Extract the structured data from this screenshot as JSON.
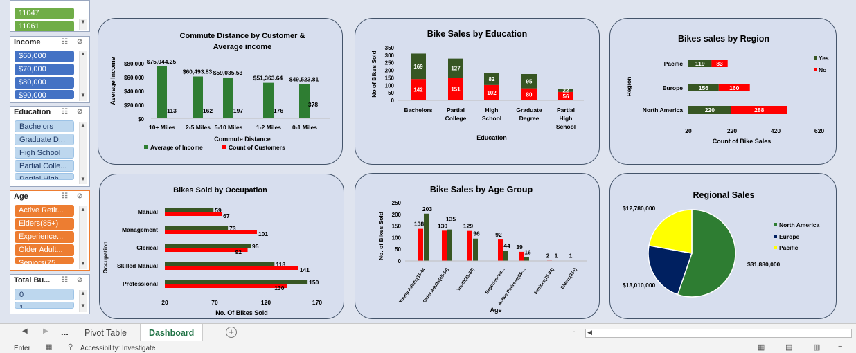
{
  "slicers": {
    "top": {
      "items": [
        "11047",
        "11061"
      ]
    },
    "income": {
      "title": "Income",
      "items": [
        "$60,000",
        "$70,000",
        "$80,000",
        "$90,000"
      ]
    },
    "education": {
      "title": "Education",
      "items": [
        "Bachelors",
        "Graduate D...",
        "High School",
        "Partial Colle...",
        "Partial High..."
      ]
    },
    "age": {
      "title": "Age",
      "items": [
        "Active Retir...",
        "Elders(85+)",
        "Experience...",
        "Older Adult...",
        "Seniors(75..."
      ]
    },
    "total": {
      "title": "Total Bu...",
      "items": [
        "0",
        "1"
      ]
    }
  },
  "charts": {
    "commute": {
      "title1": "Commute Distance by Customer &",
      "title2": "Average income",
      "xlabel": "Commute Distance",
      "ylabel": "Average Income",
      "yticks": [
        "$80,000",
        "$60,000",
        "$40,000",
        "$20,000",
        "$0"
      ],
      "legend": [
        "Average of Income",
        "Count of Customers"
      ]
    },
    "education": {
      "title": "Bike Sales by Education",
      "xlabel": "Education",
      "ylabel": "No of Bikes Sold",
      "yticks": [
        "350",
        "300",
        "250",
        "200",
        "150",
        "100",
        "50",
        "0"
      ]
    },
    "region": {
      "title": "Bikes sales by Region",
      "xlabel": "Count of Bike Sales",
      "ylabel": "Region",
      "xticks": [
        "20",
        "220",
        "420",
        "620"
      ],
      "legend": [
        "Yes",
        "No"
      ]
    },
    "occupation": {
      "title": "Bikes Sold by Occupation",
      "xlabel": "No. Of Bikes Sold",
      "ylabel": "Occupation",
      "xticks": [
        "20",
        "70",
        "120",
        "170"
      ]
    },
    "age": {
      "title": "Bike Sales by Age Group",
      "xlabel": "Age",
      "ylabel": "No. of Bikes Sold",
      "yticks": [
        "250",
        "200",
        "150",
        "100",
        "50",
        "0"
      ]
    },
    "regional": {
      "title": "Regional Sales",
      "legend": [
        "North America",
        "Europe",
        "Pacific"
      ]
    }
  },
  "chart_data": [
    {
      "type": "bar",
      "title": "Commute Distance by Customer & Average income",
      "xlabel": "Commute Distance",
      "ylabel": "Average Income",
      "categories": [
        "10+ Miles",
        "2-5 Miles",
        "5-10 Miles",
        "1-2 Miles",
        "0-1 Miles"
      ],
      "series": [
        {
          "name": "Average of Income",
          "values": [
            75044.25,
            60493.83,
            59035.53,
            51363.64,
            49523.81
          ],
          "labels": [
            "$75,044.25",
            "$60,493.83",
            "$59,035.53",
            "$51,363.64",
            "$49,523.81"
          ],
          "color": "#2e7d32"
        },
        {
          "name": "Count of Customers",
          "values": [
            113,
            162,
            197,
            176,
            378
          ],
          "color": "#ff0000"
        }
      ],
      "ylim": [
        0,
        80000
      ]
    },
    {
      "type": "bar",
      "title": "Bike Sales by Education",
      "xlabel": "Education",
      "ylabel": "No of Bikes Sold",
      "categories": [
        "Bachelors",
        "Partial College",
        "High School",
        "Graduate Degree",
        "Partial High School"
      ],
      "series": [
        {
          "name": "No",
          "values": [
            142,
            151,
            102,
            80,
            56
          ],
          "color": "#ff0000"
        },
        {
          "name": "Yes",
          "values": [
            169,
            127,
            82,
            95,
            22
          ],
          "color": "#375623"
        }
      ],
      "ylim": [
        0,
        350
      ]
    },
    {
      "type": "bar",
      "title": "Bikes sales by Region",
      "xlabel": "Count of Bike Sales",
      "ylabel": "Region",
      "categories": [
        "Pacific",
        "Europe",
        "North America"
      ],
      "series": [
        {
          "name": "Yes",
          "values": [
            119,
            156,
            220
          ],
          "color": "#375623"
        },
        {
          "name": "No",
          "values": [
            83,
            160,
            288
          ],
          "color": "#ff0000"
        }
      ],
      "xlim": [
        20,
        620
      ]
    },
    {
      "type": "bar",
      "title": "Bikes Sold by Occupation",
      "xlabel": "No. Of Bikes Sold",
      "ylabel": "Occupation",
      "categories": [
        "Manual",
        "Management",
        "Clerical",
        "Skilled Manual",
        "Professional"
      ],
      "series": [
        {
          "values": [
            59,
            73,
            95,
            118,
            150
          ],
          "color": "#375623"
        },
        {
          "values": [
            67,
            101,
            92,
            141,
            130
          ],
          "color": "#ff0000"
        }
      ],
      "xlim": [
        20,
        170
      ]
    },
    {
      "type": "bar",
      "title": "Bike Sales by Age Group",
      "xlabel": "Age",
      "ylabel": "No. of Bikes Sold",
      "categories": [
        "Young Adults(35-44",
        "Older Adults(45-54)",
        "Youth(25-34)",
        "Experienced...",
        "Active Retirees(65-...",
        "Seniors(75-84)",
        "Elders(85+)"
      ],
      "series": [
        {
          "values": [
            138,
            130,
            129,
            92,
            39,
            2,
            1
          ],
          "color": "#ff0000"
        },
        {
          "values": [
            203,
            135,
            96,
            44,
            16,
            1,
            0
          ],
          "color": "#375623"
        }
      ],
      "ylim": [
        0,
        250
      ]
    },
    {
      "type": "pie",
      "title": "Regional Sales",
      "categories": [
        "North America",
        "Europe",
        "Pacific"
      ],
      "values": [
        31880000,
        13010000,
        12780000
      ],
      "labels": [
        "$31,880,000",
        "$13,010,000",
        "$12,780,000"
      ],
      "colors": [
        "#2e7d32",
        "#002060",
        "#ffff00"
      ]
    }
  ],
  "tabs": {
    "nav_more": "...",
    "sheet1": "Pivot Table",
    "sheet2": "Dashboard"
  },
  "status": {
    "mode": "Enter",
    "accessibility": "Accessibility: Investigate"
  }
}
